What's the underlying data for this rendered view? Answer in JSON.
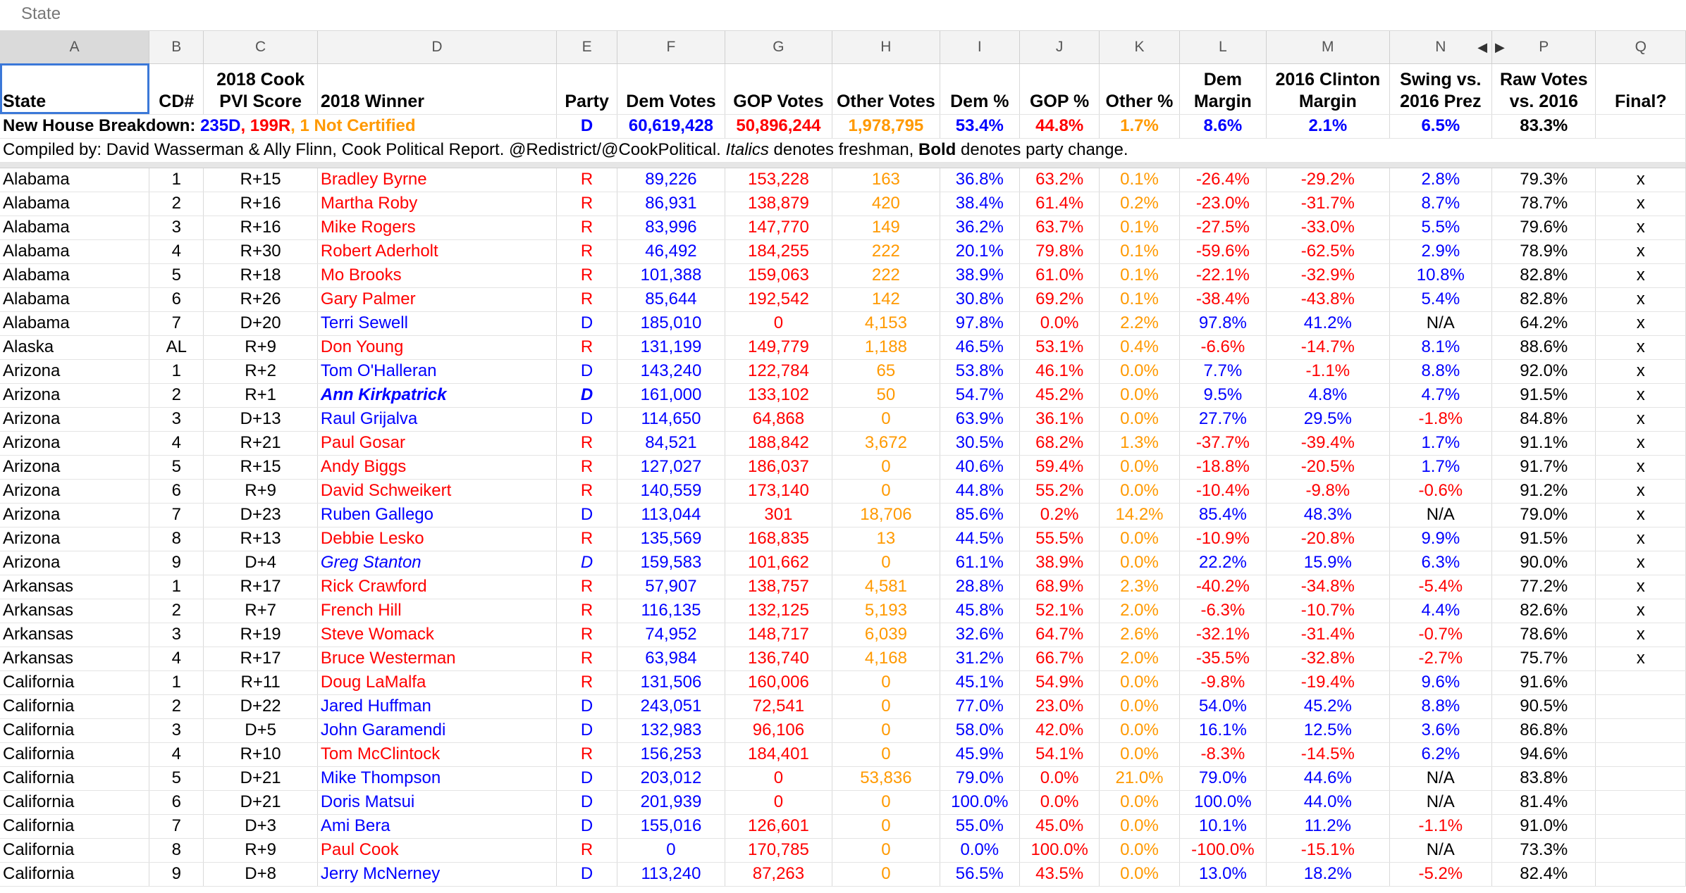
{
  "formula_bar": {
    "cell_value": "State"
  },
  "columns": [
    "A",
    "B",
    "C",
    "D",
    "E",
    "F",
    "G",
    "H",
    "I",
    "J",
    "K",
    "L",
    "M",
    "N",
    "P",
    "Q"
  ],
  "column_nav": {
    "left": "◀",
    "right": "▶"
  },
  "headers": {
    "state": "State",
    "cd": "CD#",
    "pvi": "2018 Cook PVI Score",
    "winner": "2018 Winner",
    "party": "Party",
    "dem_votes": "Dem Votes",
    "gop_votes": "GOP Votes",
    "other_votes": "Other Votes",
    "dem_pct": "Dem %",
    "gop_pct": "GOP %",
    "other_pct": "Other %",
    "dem_margin": "Dem Margin",
    "clinton_margin": "2016 Clinton Margin",
    "swing": "Swing vs. 2016 Prez",
    "raw_votes": "Raw Votes vs. 2016",
    "final": "Final?"
  },
  "summary": {
    "label": "New House Breakdown: ",
    "dem_seats": "235D",
    "sep1": ", ",
    "gop_seats": "199R",
    "sep2": ", ",
    "not_certified": "1 Not Certified",
    "party": "D",
    "dem_votes": "60,619,428",
    "gop_votes": "50,896,244",
    "other_votes": "1,978,795",
    "dem_pct": "53.4%",
    "gop_pct": "44.8%",
    "other_pct": "1.7%",
    "dem_margin": "8.6%",
    "clinton_margin": "2.1%",
    "swing": "6.5%",
    "raw_votes": "83.3%"
  },
  "credit": {
    "text1": "Compiled by: David Wasserman & Ally Flinn, Cook Political Report. @Redistrict/@CookPolitical. ",
    "italics_word": "Italics",
    "text2": " denotes freshman, ",
    "bold_word": "Bold",
    "text3": " denotes party change."
  },
  "colors": {
    "dem": "#0000ff",
    "gop": "#ff0000",
    "other": "#ff9900",
    "selection": "#3b78d8"
  },
  "rows": [
    {
      "state": "Alabama",
      "cd": "1",
      "pvi": "R+15",
      "winner": "Bradley Byrne",
      "party": "R",
      "dem": "89,226",
      "gop": "153,228",
      "other": "163",
      "dem_pct": "36.8%",
      "gop_pct": "63.2%",
      "other_pct": "0.1%",
      "margin": "-26.4%",
      "clinton": "-29.2%",
      "swing": "2.8%",
      "raw": "79.3%",
      "final": "x"
    },
    {
      "state": "Alabama",
      "cd": "2",
      "pvi": "R+16",
      "winner": "Martha Roby",
      "party": "R",
      "dem": "86,931",
      "gop": "138,879",
      "other": "420",
      "dem_pct": "38.4%",
      "gop_pct": "61.4%",
      "other_pct": "0.2%",
      "margin": "-23.0%",
      "clinton": "-31.7%",
      "swing": "8.7%",
      "raw": "78.7%",
      "final": "x"
    },
    {
      "state": "Alabama",
      "cd": "3",
      "pvi": "R+16",
      "winner": "Mike Rogers",
      "party": "R",
      "dem": "83,996",
      "gop": "147,770",
      "other": "149",
      "dem_pct": "36.2%",
      "gop_pct": "63.7%",
      "other_pct": "0.1%",
      "margin": "-27.5%",
      "clinton": "-33.0%",
      "swing": "5.5%",
      "raw": "79.6%",
      "final": "x"
    },
    {
      "state": "Alabama",
      "cd": "4",
      "pvi": "R+30",
      "winner": "Robert Aderholt",
      "party": "R",
      "dem": "46,492",
      "gop": "184,255",
      "other": "222",
      "dem_pct": "20.1%",
      "gop_pct": "79.8%",
      "other_pct": "0.1%",
      "margin": "-59.6%",
      "clinton": "-62.5%",
      "swing": "2.9%",
      "raw": "78.9%",
      "final": "x"
    },
    {
      "state": "Alabama",
      "cd": "5",
      "pvi": "R+18",
      "winner": "Mo Brooks",
      "party": "R",
      "dem": "101,388",
      "gop": "159,063",
      "other": "222",
      "dem_pct": "38.9%",
      "gop_pct": "61.0%",
      "other_pct": "0.1%",
      "margin": "-22.1%",
      "clinton": "-32.9%",
      "swing": "10.8%",
      "raw": "82.8%",
      "final": "x"
    },
    {
      "state": "Alabama",
      "cd": "6",
      "pvi": "R+26",
      "winner": "Gary Palmer",
      "party": "R",
      "dem": "85,644",
      "gop": "192,542",
      "other": "142",
      "dem_pct": "30.8%",
      "gop_pct": "69.2%",
      "other_pct": "0.1%",
      "margin": "-38.4%",
      "clinton": "-43.8%",
      "swing": "5.4%",
      "raw": "82.8%",
      "final": "x"
    },
    {
      "state": "Alabama",
      "cd": "7",
      "pvi": "D+20",
      "winner": "Terri Sewell",
      "party": "D",
      "dem": "185,010",
      "gop": "0",
      "other": "4,153",
      "dem_pct": "97.8%",
      "gop_pct": "0.0%",
      "other_pct": "2.2%",
      "margin": "97.8%",
      "clinton": "41.2%",
      "swing": "N/A",
      "raw": "64.2%",
      "final": "x"
    },
    {
      "state": "Alaska",
      "cd": "AL",
      "pvi": "R+9",
      "winner": "Don Young",
      "party": "R",
      "dem": "131,199",
      "gop": "149,779",
      "other": "1,188",
      "dem_pct": "46.5%",
      "gop_pct": "53.1%",
      "other_pct": "0.4%",
      "margin": "-6.6%",
      "clinton": "-14.7%",
      "swing": "8.1%",
      "raw": "88.6%",
      "final": "x"
    },
    {
      "state": "Arizona",
      "cd": "1",
      "pvi": "R+2",
      "winner": "Tom O'Halleran",
      "party": "D",
      "dem": "143,240",
      "gop": "122,784",
      "other": "65",
      "dem_pct": "53.8%",
      "gop_pct": "46.1%",
      "other_pct": "0.0%",
      "margin": "7.7%",
      "clinton": "-1.1%",
      "swing": "8.8%",
      "raw": "92.0%",
      "final": "x"
    },
    {
      "state": "Arizona",
      "cd": "2",
      "pvi": "R+1",
      "winner": "Ann Kirkpatrick",
      "party": "D",
      "dem": "161,000",
      "gop": "133,102",
      "other": "50",
      "dem_pct": "54.7%",
      "gop_pct": "45.2%",
      "other_pct": "0.0%",
      "margin": "9.5%",
      "clinton": "4.8%",
      "swing": "4.7%",
      "raw": "91.5%",
      "final": "x",
      "italic": true,
      "bold": true
    },
    {
      "state": "Arizona",
      "cd": "3",
      "pvi": "D+13",
      "winner": "Raul Grijalva",
      "party": "D",
      "dem": "114,650",
      "gop": "64,868",
      "other": "0",
      "dem_pct": "63.9%",
      "gop_pct": "36.1%",
      "other_pct": "0.0%",
      "margin": "27.7%",
      "clinton": "29.5%",
      "swing": "-1.8%",
      "raw": "84.8%",
      "final": "x"
    },
    {
      "state": "Arizona",
      "cd": "4",
      "pvi": "R+21",
      "winner": "Paul Gosar",
      "party": "R",
      "dem": "84,521",
      "gop": "188,842",
      "other": "3,672",
      "dem_pct": "30.5%",
      "gop_pct": "68.2%",
      "other_pct": "1.3%",
      "margin": "-37.7%",
      "clinton": "-39.4%",
      "swing": "1.7%",
      "raw": "91.1%",
      "final": "x"
    },
    {
      "state": "Arizona",
      "cd": "5",
      "pvi": "R+15",
      "winner": "Andy Biggs",
      "party": "R",
      "dem": "127,027",
      "gop": "186,037",
      "other": "0",
      "dem_pct": "40.6%",
      "gop_pct": "59.4%",
      "other_pct": "0.0%",
      "margin": "-18.8%",
      "clinton": "-20.5%",
      "swing": "1.7%",
      "raw": "91.7%",
      "final": "x"
    },
    {
      "state": "Arizona",
      "cd": "6",
      "pvi": "R+9",
      "winner": "David Schweikert",
      "party": "R",
      "dem": "140,559",
      "gop": "173,140",
      "other": "0",
      "dem_pct": "44.8%",
      "gop_pct": "55.2%",
      "other_pct": "0.0%",
      "margin": "-10.4%",
      "clinton": "-9.8%",
      "swing": "-0.6%",
      "raw": "91.2%",
      "final": "x"
    },
    {
      "state": "Arizona",
      "cd": "7",
      "pvi": "D+23",
      "winner": "Ruben Gallego",
      "party": "D",
      "dem": "113,044",
      "gop": "301",
      "other": "18,706",
      "dem_pct": "85.6%",
      "gop_pct": "0.2%",
      "other_pct": "14.2%",
      "margin": "85.4%",
      "clinton": "48.3%",
      "swing": "N/A",
      "raw": "79.0%",
      "final": "x"
    },
    {
      "state": "Arizona",
      "cd": "8",
      "pvi": "R+13",
      "winner": "Debbie Lesko",
      "party": "R",
      "dem": "135,569",
      "gop": "168,835",
      "other": "13",
      "dem_pct": "44.5%",
      "gop_pct": "55.5%",
      "other_pct": "0.0%",
      "margin": "-10.9%",
      "clinton": "-20.8%",
      "swing": "9.9%",
      "raw": "91.5%",
      "final": "x"
    },
    {
      "state": "Arizona",
      "cd": "9",
      "pvi": "D+4",
      "winner": "Greg Stanton",
      "party": "D",
      "dem": "159,583",
      "gop": "101,662",
      "other": "0",
      "dem_pct": "61.1%",
      "gop_pct": "38.9%",
      "other_pct": "0.0%",
      "margin": "22.2%",
      "clinton": "15.9%",
      "swing": "6.3%",
      "raw": "90.0%",
      "final": "x",
      "italic": true
    },
    {
      "state": "Arkansas",
      "cd": "1",
      "pvi": "R+17",
      "winner": "Rick Crawford",
      "party": "R",
      "dem": "57,907",
      "gop": "138,757",
      "other": "4,581",
      "dem_pct": "28.8%",
      "gop_pct": "68.9%",
      "other_pct": "2.3%",
      "margin": "-40.2%",
      "clinton": "-34.8%",
      "swing": "-5.4%",
      "raw": "77.2%",
      "final": "x"
    },
    {
      "state": "Arkansas",
      "cd": "2",
      "pvi": "R+7",
      "winner": "French Hill",
      "party": "R",
      "dem": "116,135",
      "gop": "132,125",
      "other": "5,193",
      "dem_pct": "45.8%",
      "gop_pct": "52.1%",
      "other_pct": "2.0%",
      "margin": "-6.3%",
      "clinton": "-10.7%",
      "swing": "4.4%",
      "raw": "82.6%",
      "final": "x"
    },
    {
      "state": "Arkansas",
      "cd": "3",
      "pvi": "R+19",
      "winner": "Steve Womack",
      "party": "R",
      "dem": "74,952",
      "gop": "148,717",
      "other": "6,039",
      "dem_pct": "32.6%",
      "gop_pct": "64.7%",
      "other_pct": "2.6%",
      "margin": "-32.1%",
      "clinton": "-31.4%",
      "swing": "-0.7%",
      "raw": "78.6%",
      "final": "x"
    },
    {
      "state": "Arkansas",
      "cd": "4",
      "pvi": "R+17",
      "winner": "Bruce Westerman",
      "party": "R",
      "dem": "63,984",
      "gop": "136,740",
      "other": "4,168",
      "dem_pct": "31.2%",
      "gop_pct": "66.7%",
      "other_pct": "2.0%",
      "margin": "-35.5%",
      "clinton": "-32.8%",
      "swing": "-2.7%",
      "raw": "75.7%",
      "final": "x"
    },
    {
      "state": "California",
      "cd": "1",
      "pvi": "R+11",
      "winner": "Doug LaMalfa",
      "party": "R",
      "dem": "131,506",
      "gop": "160,006",
      "other": "0",
      "dem_pct": "45.1%",
      "gop_pct": "54.9%",
      "other_pct": "0.0%",
      "margin": "-9.8%",
      "clinton": "-19.4%",
      "swing": "9.6%",
      "raw": "91.6%",
      "final": ""
    },
    {
      "state": "California",
      "cd": "2",
      "pvi": "D+22",
      "winner": "Jared Huffman",
      "party": "D",
      "dem": "243,051",
      "gop": "72,541",
      "other": "0",
      "dem_pct": "77.0%",
      "gop_pct": "23.0%",
      "other_pct": "0.0%",
      "margin": "54.0%",
      "clinton": "45.2%",
      "swing": "8.8%",
      "raw": "90.5%",
      "final": ""
    },
    {
      "state": "California",
      "cd": "3",
      "pvi": "D+5",
      "winner": "John Garamendi",
      "party": "D",
      "dem": "132,983",
      "gop": "96,106",
      "other": "0",
      "dem_pct": "58.0%",
      "gop_pct": "42.0%",
      "other_pct": "0.0%",
      "margin": "16.1%",
      "clinton": "12.5%",
      "swing": "3.6%",
      "raw": "86.8%",
      "final": ""
    },
    {
      "state": "California",
      "cd": "4",
      "pvi": "R+10",
      "winner": "Tom McClintock",
      "party": "R",
      "dem": "156,253",
      "gop": "184,401",
      "other": "0",
      "dem_pct": "45.9%",
      "gop_pct": "54.1%",
      "other_pct": "0.0%",
      "margin": "-8.3%",
      "clinton": "-14.5%",
      "swing": "6.2%",
      "raw": "94.6%",
      "final": ""
    },
    {
      "state": "California",
      "cd": "5",
      "pvi": "D+21",
      "winner": "Mike Thompson",
      "party": "D",
      "dem": "203,012",
      "gop": "0",
      "other": "53,836",
      "dem_pct": "79.0%",
      "gop_pct": "0.0%",
      "other_pct": "21.0%",
      "margin": "79.0%",
      "clinton": "44.6%",
      "swing": "N/A",
      "raw": "83.8%",
      "final": ""
    },
    {
      "state": "California",
      "cd": "6",
      "pvi": "D+21",
      "winner": "Doris Matsui",
      "party": "D",
      "dem": "201,939",
      "gop": "0",
      "other": "0",
      "dem_pct": "100.0%",
      "gop_pct": "0.0%",
      "other_pct": "0.0%",
      "margin": "100.0%",
      "clinton": "44.0%",
      "swing": "N/A",
      "raw": "81.4%",
      "final": ""
    },
    {
      "state": "California",
      "cd": "7",
      "pvi": "D+3",
      "winner": "Ami Bera",
      "party": "D",
      "dem": "155,016",
      "gop": "126,601",
      "other": "0",
      "dem_pct": "55.0%",
      "gop_pct": "45.0%",
      "other_pct": "0.0%",
      "margin": "10.1%",
      "clinton": "11.2%",
      "swing": "-1.1%",
      "raw": "91.0%",
      "final": ""
    },
    {
      "state": "California",
      "cd": "8",
      "pvi": "R+9",
      "winner": "Paul Cook",
      "party": "R",
      "dem": "0",
      "gop": "170,785",
      "other": "0",
      "dem_pct": "0.0%",
      "gop_pct": "100.0%",
      "other_pct": "0.0%",
      "margin": "-100.0%",
      "clinton": "-15.1%",
      "swing": "N/A",
      "raw": "73.3%",
      "final": ""
    },
    {
      "state": "California",
      "cd": "9",
      "pvi": "D+8",
      "winner": "Jerry McNerney",
      "party": "D",
      "dem": "113,240",
      "gop": "87,263",
      "other": "0",
      "dem_pct": "56.5%",
      "gop_pct": "43.5%",
      "other_pct": "0.0%",
      "margin": "13.0%",
      "clinton": "18.2%",
      "swing": "-5.2%",
      "raw": "82.4%",
      "final": ""
    }
  ]
}
